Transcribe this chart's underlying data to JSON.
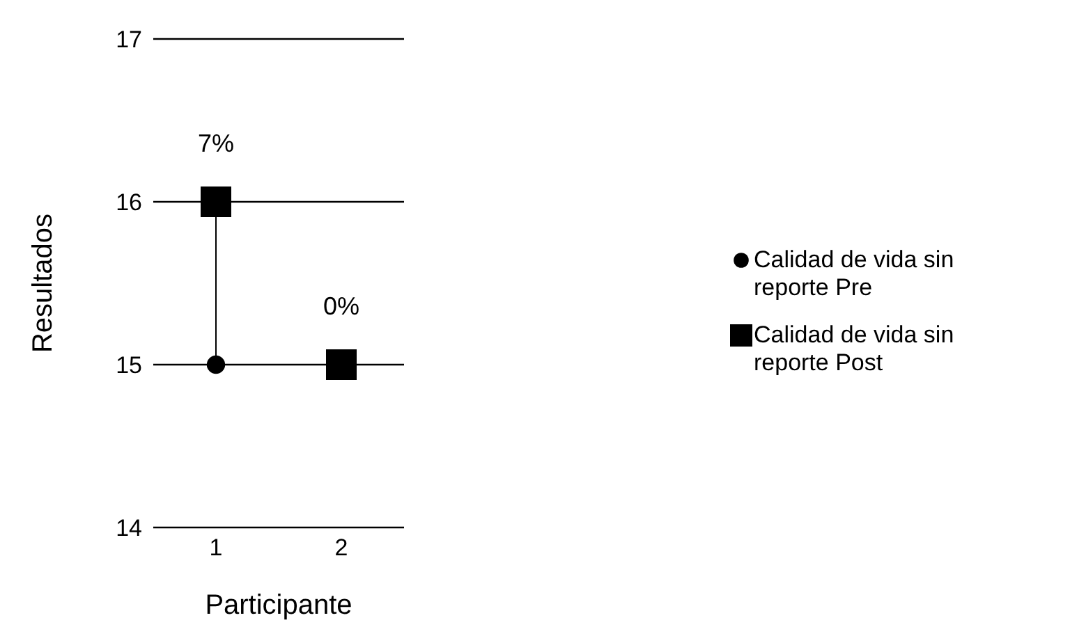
{
  "chart_data": {
    "type": "scatter",
    "xlabel": "Participante",
    "ylabel": "Resultados",
    "categories": [
      "1",
      "2"
    ],
    "series": [
      {
        "name": "Calidad de vida sin reporte Pre",
        "color": "#000000",
        "marker": "circle",
        "values": [
          15,
          null
        ]
      },
      {
        "name": "Calidad de vida sin reporte Post",
        "color": "#000000",
        "marker": "square",
        "values": [
          16,
          15
        ]
      }
    ],
    "ylim": [
      14,
      17
    ],
    "yticks": [
      14,
      15,
      16,
      17
    ],
    "grid": "y",
    "legend": "right",
    "annotations": [
      {
        "text": "7%",
        "x": "1",
        "y": 16
      },
      {
        "text": "0%",
        "x": "2",
        "y": 15
      }
    ]
  }
}
